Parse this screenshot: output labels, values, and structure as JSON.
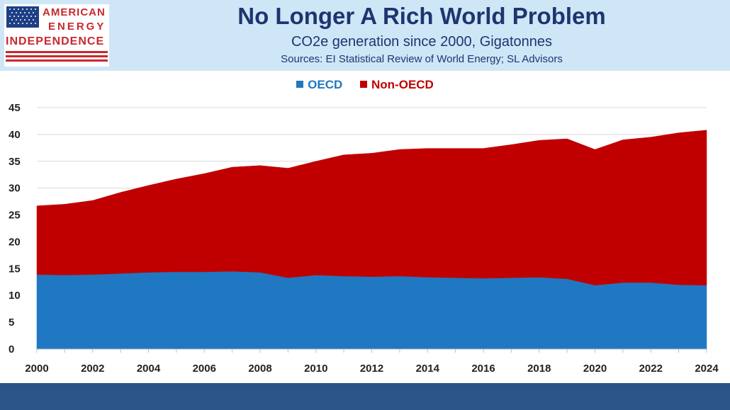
{
  "header": {
    "logo": {
      "line1": "AMERICAN",
      "line2": "ENERGY",
      "line3": "INDEPENDENCE"
    },
    "title": "No Longer A Rich World Problem",
    "subtitle": "CO2e generation since 2000, Gigatonnes",
    "sources": "Sources: EI Statistical Review of World Energy; SL Advisors"
  },
  "colors": {
    "header_bg": "#cfe6f7",
    "title": "#1e3570",
    "oecd": "#1f78c1",
    "non_oecd": "#c00000",
    "footer": "#2a5586"
  },
  "chart_data": {
    "type": "area",
    "stacked": true,
    "x": [
      2000,
      2001,
      2002,
      2003,
      2004,
      2005,
      2006,
      2007,
      2008,
      2009,
      2010,
      2011,
      2012,
      2013,
      2014,
      2015,
      2016,
      2017,
      2018,
      2019,
      2020,
      2021,
      2022,
      2023,
      2024
    ],
    "series": [
      {
        "name": "OECD",
        "color": "#1f78c1",
        "values": [
          13.9,
          13.8,
          13.9,
          14.1,
          14.3,
          14.4,
          14.4,
          14.5,
          14.3,
          13.3,
          13.8,
          13.6,
          13.5,
          13.6,
          13.4,
          13.3,
          13.2,
          13.3,
          13.4,
          13.1,
          11.9,
          12.4,
          12.4,
          12.0,
          11.9
        ]
      },
      {
        "name": "Non-OECD",
        "color": "#c00000",
        "values": [
          12.8,
          13.2,
          13.8,
          15.1,
          16.2,
          17.3,
          18.3,
          19.4,
          19.9,
          20.4,
          21.2,
          22.6,
          23.0,
          23.6,
          24.0,
          24.1,
          24.2,
          24.8,
          25.5,
          26.1,
          25.3,
          26.6,
          27.1,
          28.3,
          28.9
        ]
      }
    ],
    "ylim": [
      0,
      45
    ],
    "yticks": [
      0,
      5,
      10,
      15,
      20,
      25,
      30,
      35,
      40,
      45
    ],
    "xticks": [
      2000,
      2002,
      2004,
      2006,
      2008,
      2010,
      2012,
      2014,
      2016,
      2018,
      2020,
      2022,
      2024
    ],
    "grid": true,
    "legend_position": "top-center"
  }
}
